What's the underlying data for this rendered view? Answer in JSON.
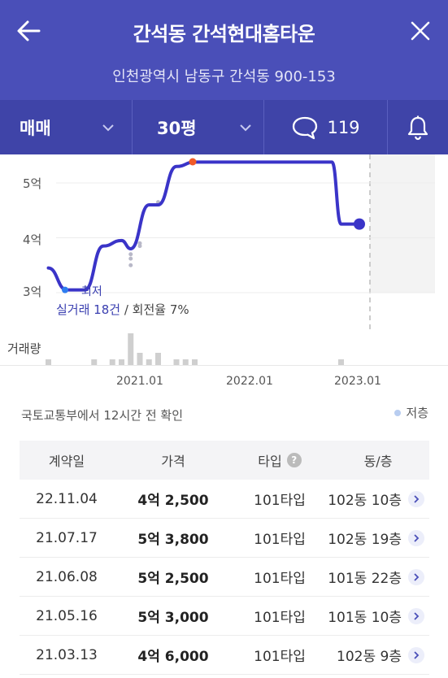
{
  "header": {
    "title": "간석동 간석현대홈타운",
    "address": "인천광역시 남동구 간석동 900-153"
  },
  "filters": {
    "deal_type": "매매",
    "size": "30평",
    "comments_count": "119"
  },
  "chart": {
    "y_ticks": [
      "5억",
      "4억",
      "3억"
    ],
    "x_ticks": [
      "2021.01",
      "2022.01",
      "2023.01"
    ],
    "volume_label": "거래량",
    "lowest_label": "최저",
    "tx_count": "실거래 18건",
    "turnover": " / 회전율 7%"
  },
  "chart_data": {
    "type": "line",
    "series": [
      {
        "values": [
          {
            "x": "2020.03",
            "y": 3.45
          },
          {
            "x": "2020.05",
            "y": 3.05
          },
          {
            "x": "2020.07",
            "y": 3.05
          },
          {
            "x": "2020.09",
            "y": 3.85
          },
          {
            "x": "2020.11",
            "y": 3.95
          },
          {
            "x": "2020.12",
            "y": 3.8
          },
          {
            "x": "2021.02",
            "y": 4.6
          },
          {
            "x": "2021.03",
            "y": 4.6
          },
          {
            "x": "2021.05",
            "y": 5.3
          },
          {
            "x": "2021.07",
            "y": 5.38
          },
          {
            "x": "2022.10",
            "y": 5.38
          },
          {
            "x": "2022.11",
            "y": 4.25
          },
          {
            "x": "2023.01",
            "y": 4.25
          }
        ]
      }
    ],
    "volume": [
      {
        "x": "2020.03",
        "v": 1
      },
      {
        "x": "2020.08",
        "v": 1
      },
      {
        "x": "2020.10",
        "v": 1
      },
      {
        "x": "2020.11",
        "v": 1
      },
      {
        "x": "2020.12",
        "v": 5
      },
      {
        "x": "2021.01",
        "v": 2
      },
      {
        "x": "2021.02",
        "v": 1
      },
      {
        "x": "2021.03",
        "v": 2
      },
      {
        "x": "2021.05",
        "v": 1
      },
      {
        "x": "2021.06",
        "v": 1
      },
      {
        "x": "2021.07",
        "v": 1
      },
      {
        "x": "2022.11",
        "v": 1
      }
    ],
    "ylim": [
      3,
      5.5
    ]
  },
  "info": {
    "source": "국토교통부에서 12시간 전 확인",
    "legend": "저층",
    "legend_color": "#b8cdf0"
  },
  "table": {
    "headers": [
      "계약일",
      "가격",
      "타입",
      "동/층"
    ],
    "rows": [
      {
        "date": "22.11.04",
        "price": "4억 2,500",
        "type": "101타입",
        "unit": "102동 10층"
      },
      {
        "date": "21.07.17",
        "price": "5억 3,800",
        "type": "101타입",
        "unit": "102동 19층"
      },
      {
        "date": "21.06.08",
        "price": "5억 2,500",
        "type": "101타입",
        "unit": "101동 22층"
      },
      {
        "date": "21.05.16",
        "price": "5억 3,000",
        "type": "101타입",
        "unit": "101동 10층"
      },
      {
        "date": "21.03.13",
        "price": "4억 6,000",
        "type": "101타입",
        "unit": "102동 9층"
      }
    ]
  },
  "colors": {
    "header_bg": "#4a4fb8",
    "accent_line": "#3a34c8",
    "max_point": "#f05a28"
  }
}
